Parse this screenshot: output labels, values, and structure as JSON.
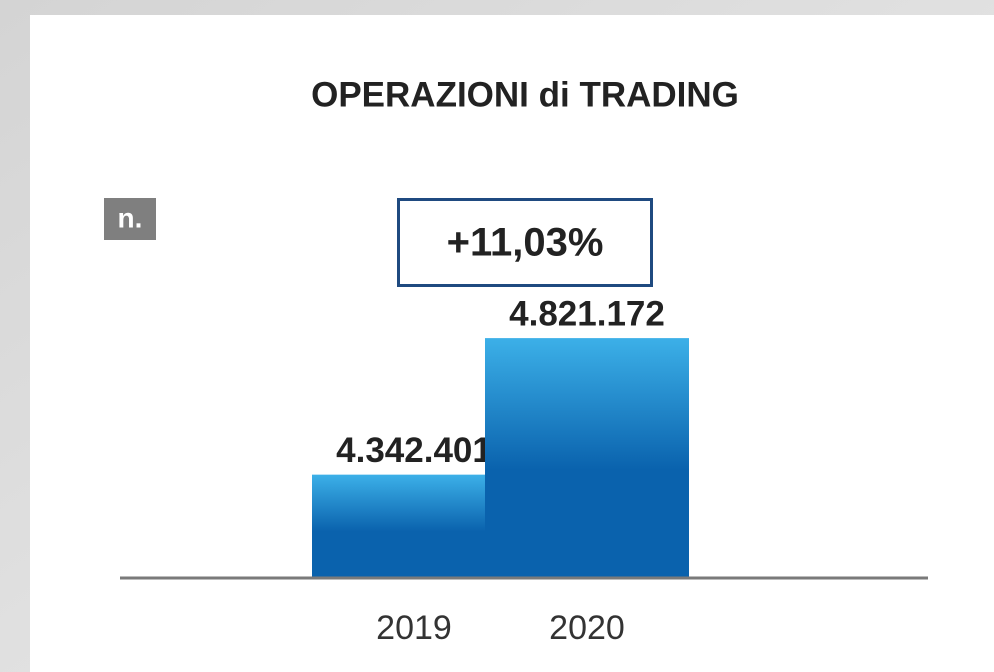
{
  "chart_data": {
    "type": "bar",
    "title": "OPERAZIONI di TRADING",
    "unit_label": "n.",
    "annotation": "+11,03%",
    "categories": [
      "2019",
      "2020"
    ],
    "values": [
      4342401,
      4821172
    ],
    "value_labels": [
      "4.342.401",
      "4.821.172"
    ],
    "color": "#0a62ad",
    "ylim": [
      3980000,
      5060000
    ]
  }
}
